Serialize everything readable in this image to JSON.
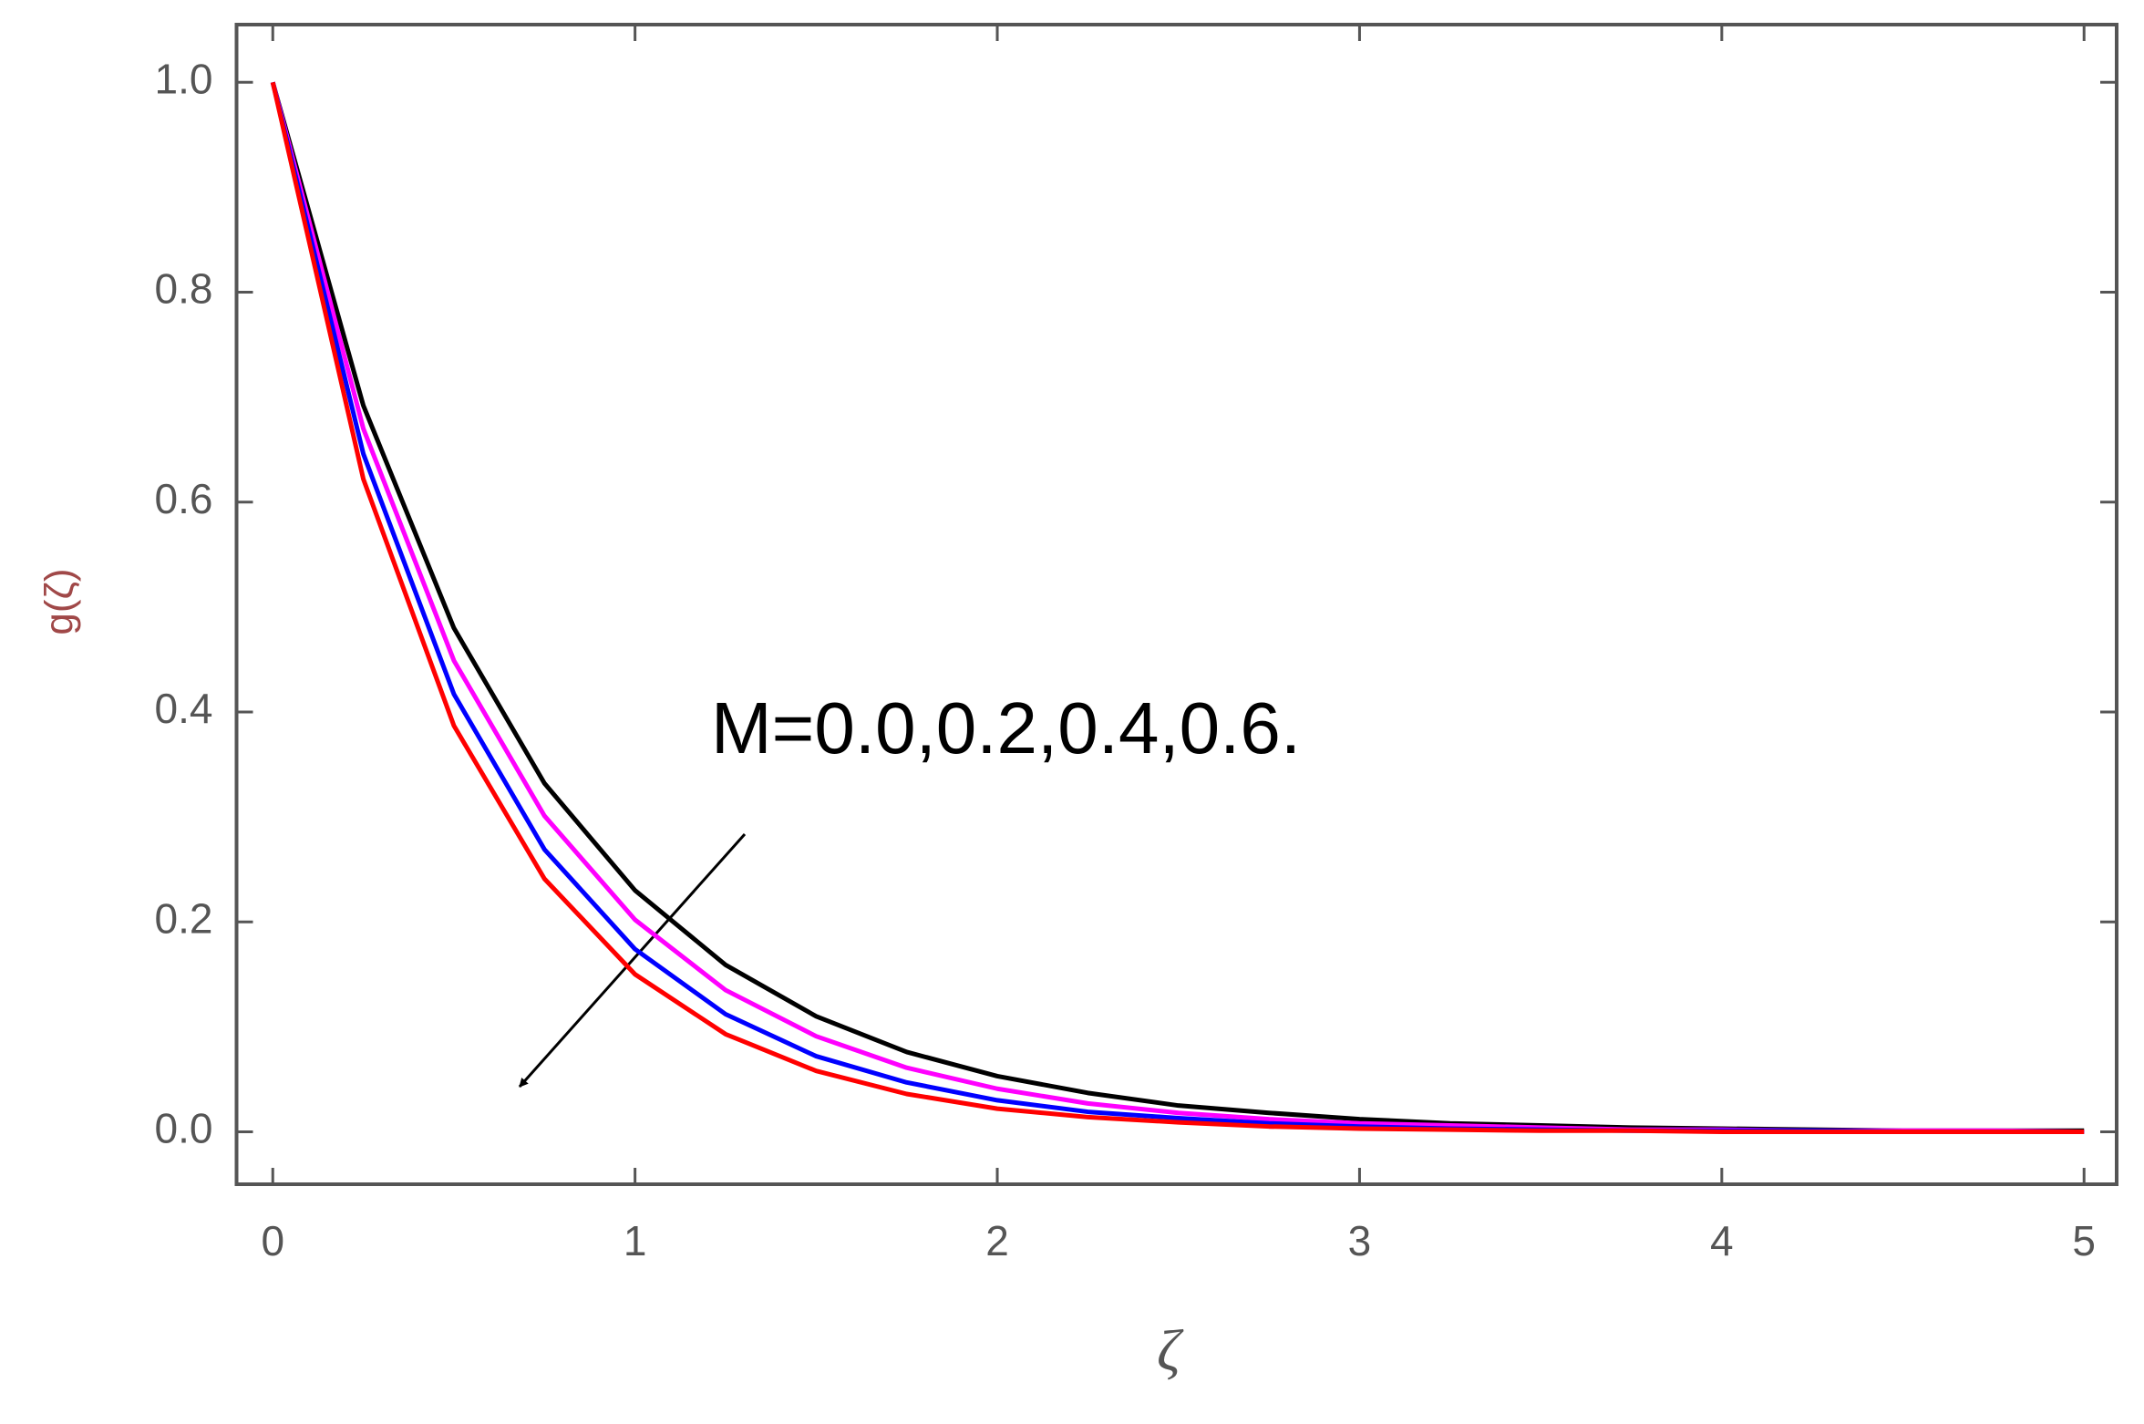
{
  "chart_data": {
    "type": "line",
    "xlabel": "ζ",
    "ylabel": "g(ζ)",
    "annotation": "M=0.0,0.2,0.4,0.6.",
    "x": [
      0,
      0.25,
      0.5,
      0.75,
      1,
      1.25,
      1.5,
      1.75,
      2,
      2.25,
      2.5,
      2.75,
      3,
      3.25,
      3.5,
      3.75,
      4,
      4.25,
      4.5,
      4.75,
      5
    ],
    "series": [
      {
        "color": "#000000",
        "values": [
          1,
          0.692,
          0.48,
          0.332,
          0.23,
          0.159,
          0.11,
          0.076,
          0.053,
          0.037,
          0.025,
          0.018,
          0.012,
          0.008,
          0.006,
          0.004,
          0.003,
          0.002,
          0.001,
          0.001,
          0.001
        ]
      },
      {
        "color": "#ff00ff",
        "values": [
          1,
          0.67,
          0.449,
          0.301,
          0.202,
          0.135,
          0.091,
          0.061,
          0.041,
          0.027,
          0.018,
          0.012,
          0.008,
          0.006,
          0.004,
          0.002,
          0.002,
          0.001,
          0.001,
          0.001,
          0
        ]
      },
      {
        "color": "#0000ff",
        "values": [
          1,
          0.646,
          0.417,
          0.269,
          0.174,
          0.112,
          0.072,
          0.047,
          0.03,
          0.019,
          0.013,
          0.008,
          0.005,
          0.003,
          0.002,
          0.001,
          0.001,
          0.001,
          0,
          0,
          0
        ]
      },
      {
        "color": "#ff0000",
        "values": [
          1,
          0.622,
          0.387,
          0.241,
          0.15,
          0.093,
          0.058,
          0.036,
          0.022,
          0.014,
          0.009,
          0.005,
          0.003,
          0.002,
          0.001,
          0.001,
          0,
          0,
          0,
          0,
          0
        ]
      }
    ],
    "xlim": [
      -0.1,
      5.09
    ],
    "ylim": [
      -0.05,
      1.055
    ],
    "xticks": [
      0,
      1,
      2,
      3,
      4,
      5
    ],
    "yticks": [
      {
        "value": 0,
        "label": "0.0"
      },
      0.2,
      0.4,
      0.6,
      0.8,
      {
        "value": 1,
        "label": "1.0"
      }
    ],
    "grid": false
  }
}
